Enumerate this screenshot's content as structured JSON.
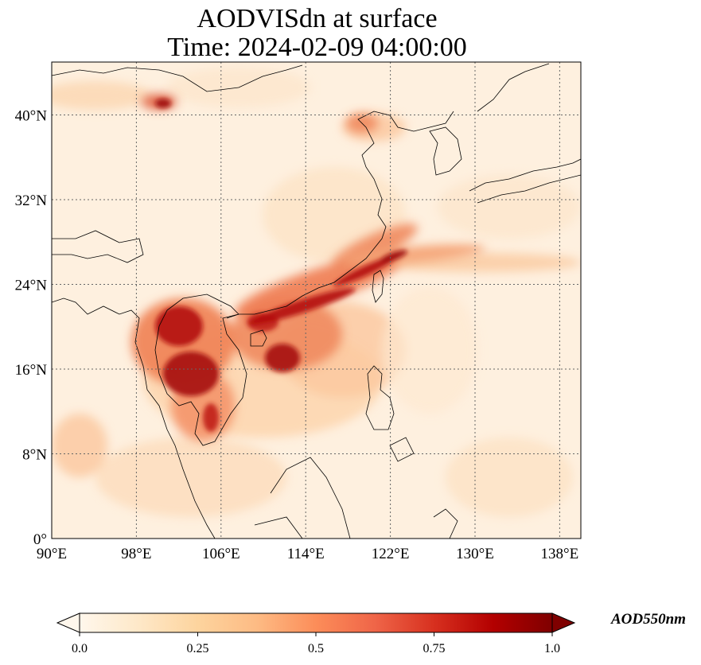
{
  "title_line1": "AODVISdn at surface",
  "title_line2": "Time: 2024-02-09 04:00:00",
  "map": {
    "extent": {
      "lon_min": 90,
      "lon_max": 140,
      "lat_min": 0,
      "lat_max": 45
    },
    "lon_ticks": [
      90,
      98,
      106,
      114,
      122,
      130,
      138
    ],
    "lon_tick_labels": [
      "90°E",
      "98°E",
      "106°E",
      "114°E",
      "122°E",
      "130°E",
      "138°E"
    ],
    "lat_ticks": [
      0,
      8,
      16,
      24,
      32,
      40
    ],
    "lat_tick_labels": [
      "0°",
      "8°N",
      "16°N",
      "24°N",
      "32°N",
      "40°N"
    ],
    "gridlines": true,
    "colormap": "OrRd",
    "colors": {
      "low": "#fff7ec",
      "mid": "#fc8d59",
      "high": "#7f0000",
      "coast": "#000000"
    }
  },
  "colorbar": {
    "label": "AOD550nm",
    "min": 0.0,
    "max": 1.0,
    "ticks": [
      0.0,
      0.25,
      0.5,
      0.75,
      1.0
    ],
    "tick_labels": [
      "0.0",
      "0.25",
      "0.5",
      "0.75",
      "1.0"
    ],
    "extend": "both"
  }
}
